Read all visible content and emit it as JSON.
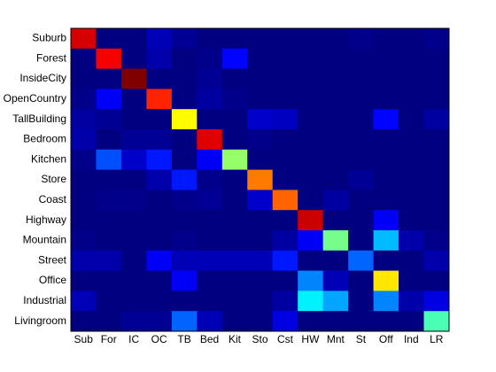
{
  "chart_data": {
    "type": "heatmap",
    "colormap": "jet",
    "x_categories": [
      "Sub",
      "For",
      "IC",
      "OC",
      "TB",
      "Bed",
      "Kit",
      "Sto",
      "Cst",
      "HW",
      "Mnt",
      "St",
      "Off",
      "Ind",
      "LR"
    ],
    "y_categories": [
      "Suburb",
      "Forest",
      "InsideCity",
      "OpenCountry",
      "TallBuilding",
      "Bedroom",
      "Kitchen",
      "Store",
      "Coast",
      "Highway",
      "Mountain",
      "Street",
      "Office",
      "Industrial",
      "Livingroom"
    ],
    "values": [
      [
        0.87,
        0.01,
        0.01,
        0.06,
        0.03,
        0.01,
        0.01,
        0.01,
        0.01,
        0.01,
        0.01,
        0.02,
        0.01,
        0.01,
        0.02
      ],
      [
        0.01,
        0.84,
        0.01,
        0.05,
        0.01,
        0.02,
        0.13,
        0.01,
        0.01,
        0.01,
        0.01,
        0.01,
        0.01,
        0.01,
        0.01
      ],
      [
        0.01,
        0.01,
        0.95,
        0.01,
        0.01,
        0.03,
        0.01,
        0.01,
        0.01,
        0.01,
        0.01,
        0.01,
        0.01,
        0.01,
        0.01
      ],
      [
        0.02,
        0.12,
        0.01,
        0.8,
        0.01,
        0.04,
        0.02,
        0.01,
        0.01,
        0.01,
        0.01,
        0.01,
        0.01,
        0.01,
        0.01
      ],
      [
        0.04,
        0.03,
        0.01,
        0.01,
        0.6,
        0.01,
        0.01,
        0.08,
        0.07,
        0.01,
        0.01,
        0.01,
        0.13,
        0.01,
        0.04
      ],
      [
        0.05,
        0.01,
        0.03,
        0.03,
        0.01,
        0.86,
        0.01,
        0.02,
        0.01,
        0.01,
        0.01,
        0.01,
        0.01,
        0.01,
        0.01
      ],
      [
        0.02,
        0.2,
        0.08,
        0.15,
        0.01,
        0.12,
        0.5,
        0.01,
        0.01,
        0.01,
        0.01,
        0.01,
        0.01,
        0.01,
        0.01
      ],
      [
        0.01,
        0.01,
        0.01,
        0.05,
        0.15,
        0.02,
        0.01,
        0.72,
        0.01,
        0.01,
        0.01,
        0.03,
        0.01,
        0.01,
        0.01
      ],
      [
        0.01,
        0.02,
        0.02,
        0.01,
        0.02,
        0.03,
        0.01,
        0.08,
        0.74,
        0.01,
        0.04,
        0.01,
        0.01,
        0.01,
        0.01
      ],
      [
        0.01,
        0.01,
        0.01,
        0.01,
        0.01,
        0.01,
        0.01,
        0.01,
        0.01,
        0.88,
        0.01,
        0.01,
        0.12,
        0.01,
        0.01
      ],
      [
        0.02,
        0.01,
        0.01,
        0.01,
        0.02,
        0.01,
        0.01,
        0.01,
        0.04,
        0.12,
        0.47,
        0.01,
        0.3,
        0.05,
        0.02
      ],
      [
        0.05,
        0.05,
        0.01,
        0.12,
        0.06,
        0.06,
        0.06,
        0.06,
        0.15,
        0.01,
        0.01,
        0.22,
        0.01,
        0.01,
        0.05
      ],
      [
        0.01,
        0.01,
        0.01,
        0.01,
        0.12,
        0.01,
        0.01,
        0.01,
        0.01,
        0.25,
        0.06,
        0.01,
        0.62,
        0.01,
        0.01
      ],
      [
        0.06,
        0.01,
        0.01,
        0.01,
        0.01,
        0.01,
        0.01,
        0.01,
        0.04,
        0.35,
        0.28,
        0.01,
        0.25,
        0.05,
        0.1
      ],
      [
        0.01,
        0.01,
        0.03,
        0.03,
        0.22,
        0.06,
        0.01,
        0.01,
        0.1,
        0.01,
        0.01,
        0.01,
        0.01,
        0.01,
        0.43
      ]
    ]
  }
}
